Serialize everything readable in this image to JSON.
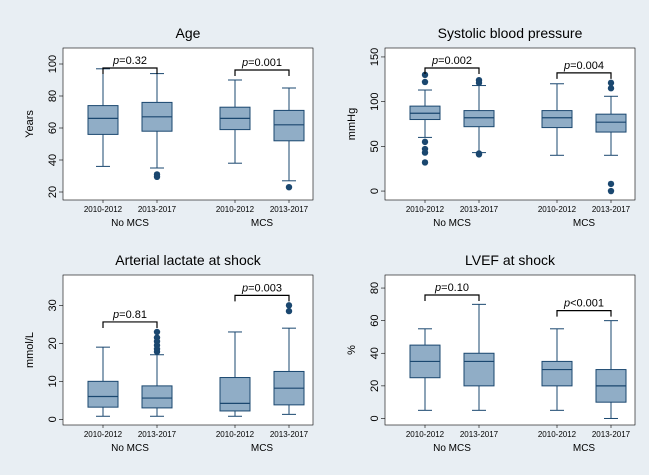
{
  "colors": {
    "background": "#e8eef3",
    "plot_bg": "#ffffff",
    "box_fill": "#90adc6",
    "box_stroke": "#1a476f",
    "outlier": "#1a476f",
    "median": "#1a476f"
  },
  "chart_data": [
    {
      "type": "box",
      "title": "Age",
      "ylabel": "Years",
      "ylim": [
        15,
        110
      ],
      "yticks": [
        20,
        40,
        60,
        80,
        100
      ],
      "groups": [
        "No MCS",
        "MCS"
      ],
      "periods": [
        "2010-2012",
        "2013-2017"
      ],
      "boxes": [
        {
          "group": "No MCS",
          "period": "2010-2012",
          "min": 36,
          "q1": 56,
          "median": 66,
          "q3": 74,
          "max": 97,
          "outliers": []
        },
        {
          "group": "No MCS",
          "period": "2013-2017",
          "min": 35,
          "q1": 58,
          "median": 67,
          "q3": 76,
          "max": 94,
          "outliers": [
            31,
            29.5
          ]
        },
        {
          "group": "MCS",
          "period": "2010-2012",
          "min": 38,
          "q1": 59,
          "median": 66,
          "q3": 73,
          "max": 90,
          "outliers": []
        },
        {
          "group": "MCS",
          "period": "2013-2017",
          "min": 27,
          "q1": 52,
          "median": 62,
          "q3": 71,
          "max": 85,
          "outliers": [
            23
          ]
        }
      ],
      "comparisons": [
        {
          "group": "No MCS",
          "label": "p=0.32"
        },
        {
          "group": "MCS",
          "label": "p=0.001"
        }
      ]
    },
    {
      "type": "box",
      "title": "Systolic blood pressure",
      "ylabel": "mmHg",
      "ylim": [
        -10,
        160
      ],
      "yticks": [
        0,
        50,
        100,
        150
      ],
      "groups": [
        "No MCS",
        "MCS"
      ],
      "periods": [
        "2010-2012",
        "2013-2017"
      ],
      "boxes": [
        {
          "group": "No MCS",
          "period": "2010-2012",
          "min": 60,
          "q1": 80,
          "median": 87,
          "q3": 95,
          "max": 113,
          "outliers": [
            130,
            122,
            55,
            47,
            43,
            32
          ]
        },
        {
          "group": "No MCS",
          "period": "2013-2017",
          "min": 43,
          "q1": 72,
          "median": 82,
          "q3": 90,
          "max": 118,
          "outliers": [
            124,
            121,
            42,
            41
          ]
        },
        {
          "group": "MCS",
          "period": "2010-2012",
          "min": 40,
          "q1": 71,
          "median": 82,
          "q3": 90,
          "max": 120,
          "outliers": []
        },
        {
          "group": "MCS",
          "period": "2013-2017",
          "min": 40,
          "q1": 66,
          "median": 77,
          "q3": 86,
          "max": 106,
          "outliers": [
            121,
            115,
            8,
            0
          ]
        }
      ],
      "comparisons": [
        {
          "group": "No MCS",
          "label": "p=0.002"
        },
        {
          "group": "MCS",
          "label": "p=0.004"
        }
      ]
    },
    {
      "type": "box",
      "title": "Arterial lactate at shock",
      "ylabel": "mmol/L",
      "ylim": [
        -1.5,
        38
      ],
      "yticks": [
        0,
        10,
        20,
        30
      ],
      "groups": [
        "No MCS",
        "MCS"
      ],
      "periods": [
        "2010-2012",
        "2013-2017"
      ],
      "boxes": [
        {
          "group": "No MCS",
          "period": "2010-2012",
          "min": 0.8,
          "q1": 3.2,
          "median": 6,
          "q3": 10,
          "max": 19,
          "outliers": []
        },
        {
          "group": "No MCS",
          "period": "2013-2017",
          "min": 0.8,
          "q1": 3,
          "median": 5.6,
          "q3": 8.8,
          "max": 17,
          "outliers": [
            23,
            21.5,
            20.5,
            19.5,
            18.5,
            17.8
          ]
        },
        {
          "group": "MCS",
          "period": "2010-2012",
          "min": 0.8,
          "q1": 2.2,
          "median": 4.2,
          "q3": 11,
          "max": 23,
          "outliers": []
        },
        {
          "group": "MCS",
          "period": "2013-2017",
          "min": 1.3,
          "q1": 3.8,
          "median": 8.2,
          "q3": 12.6,
          "max": 24,
          "outliers": [
            30,
            28.5
          ]
        }
      ],
      "comparisons": [
        {
          "group": "No MCS",
          "label": "p=0.81"
        },
        {
          "group": "MCS",
          "label": "p=0.003"
        }
      ]
    },
    {
      "type": "box",
      "title": "LVEF at shock",
      "ylabel": "%",
      "ylim": [
        -4,
        88
      ],
      "yticks": [
        0,
        20,
        40,
        60,
        80
      ],
      "groups": [
        "No MCS",
        "MCS"
      ],
      "periods": [
        "2010-2012",
        "2013-2017"
      ],
      "boxes": [
        {
          "group": "No MCS",
          "period": "2010-2012",
          "min": 5,
          "q1": 25,
          "median": 35,
          "q3": 45,
          "max": 55,
          "outliers": []
        },
        {
          "group": "No MCS",
          "period": "2013-2017",
          "min": 5,
          "q1": 20,
          "median": 35,
          "q3": 40,
          "max": 70,
          "outliers": []
        },
        {
          "group": "MCS",
          "period": "2010-2012",
          "min": 5,
          "q1": 20,
          "median": 30,
          "q3": 35,
          "max": 55,
          "outliers": []
        },
        {
          "group": "MCS",
          "period": "2013-2017",
          "min": 0,
          "q1": 10,
          "median": 20,
          "q3": 30,
          "max": 60,
          "outliers": []
        }
      ],
      "comparisons": [
        {
          "group": "No MCS",
          "label": "p=0.10"
        },
        {
          "group": "MCS",
          "label": "p<0.001"
        }
      ]
    }
  ]
}
